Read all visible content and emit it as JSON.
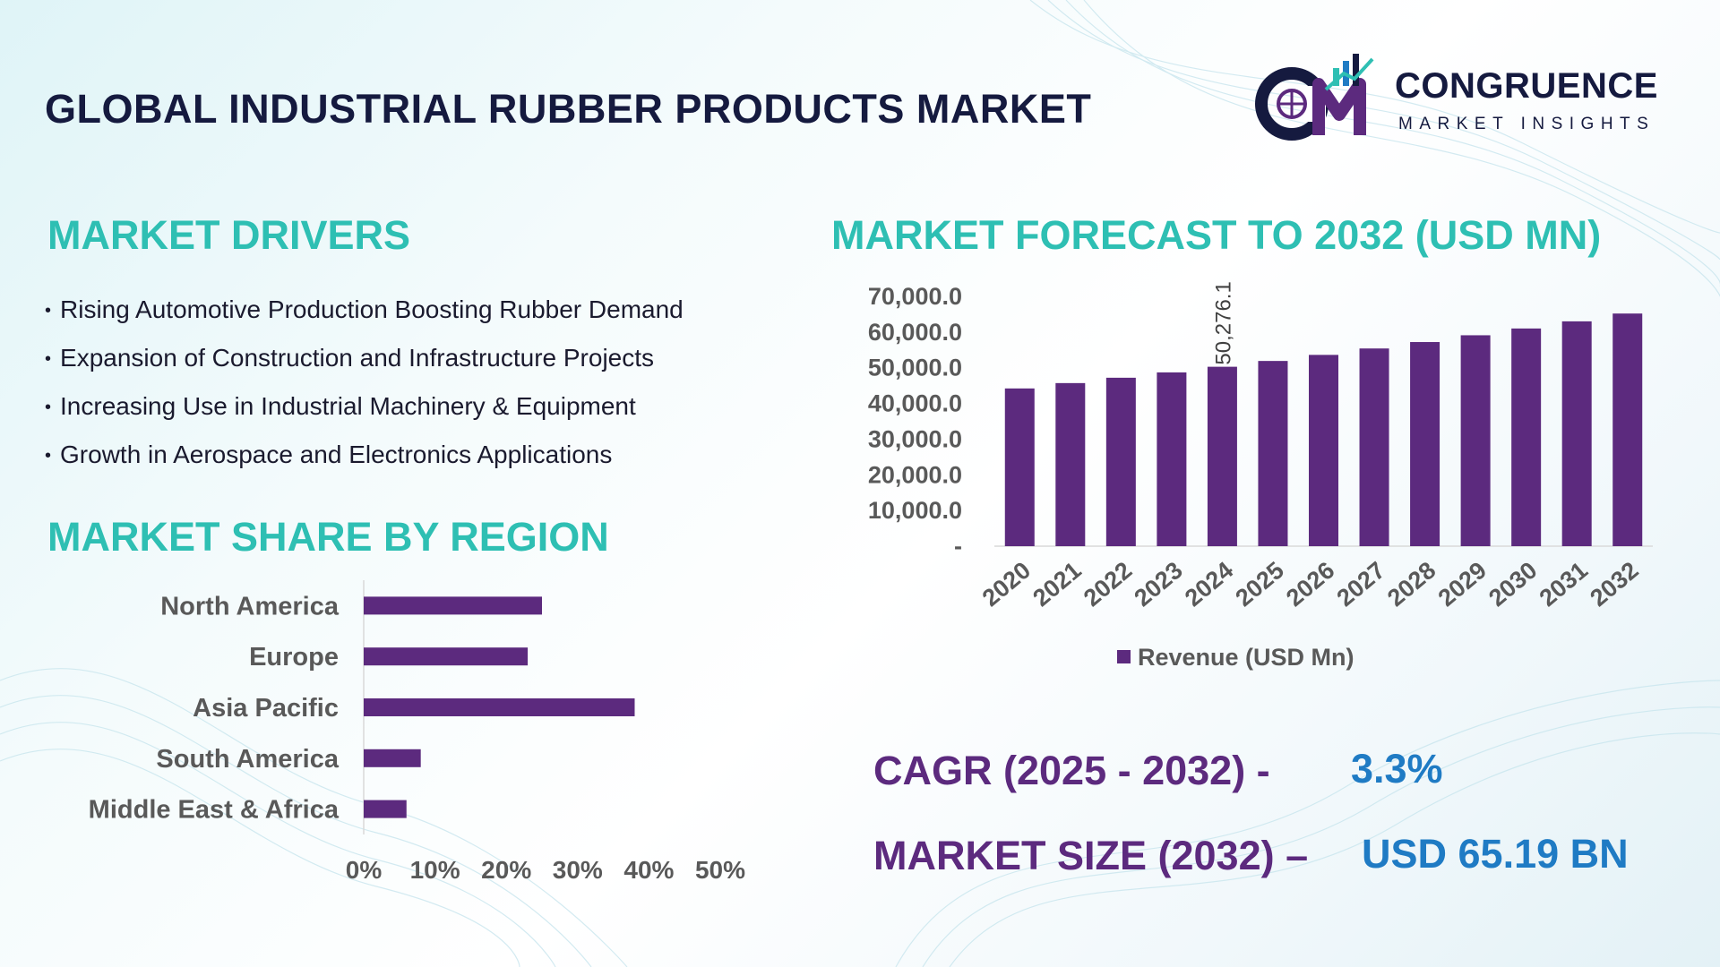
{
  "title": "GLOBAL INDUSTRIAL RUBBER PRODUCTS MARKET",
  "logo": {
    "name": "CONGRUENCE",
    "subtitle": "MARKET INSIGHTS",
    "mark": "CM"
  },
  "drivers": {
    "title": "MARKET DRIVERS",
    "bullet": "•",
    "items": [
      "Rising Automotive Production Boosting Rubber Demand",
      "Expansion of Construction and Infrastructure Projects",
      "Increasing Use in Industrial Machinery & Equipment",
      "Growth in Aerospace and Electronics Applications"
    ]
  },
  "forecast_title": "MARKET FORECAST TO 2032 (USD MN)",
  "region_title": "MARKET SHARE BY REGION",
  "stats": {
    "cagr_label": "CAGR (2025 - 2032) -",
    "cagr_value": "3.3%",
    "size_label": "MARKET SIZE (2032) –",
    "size_value": "USD 65.19 BN"
  },
  "colors": {
    "bar": "#5c2a7e",
    "accent": "#2ebfb3",
    "value": "#1f7bc4",
    "title": "#151a3f"
  },
  "chart_data": [
    {
      "type": "bar",
      "categories": [
        "2020",
        "2021",
        "2022",
        "2023",
        "2024",
        "2025",
        "2026",
        "2027",
        "2028",
        "2029",
        "2030",
        "2031",
        "2032"
      ],
      "series": [
        {
          "name": "Revenue (USD Mn)",
          "values": [
            44200,
            45700,
            47200,
            48700,
            50276.1,
            51900,
            53600,
            55400,
            57200,
            59100,
            61000,
            63000,
            65190
          ]
        }
      ],
      "ylim": [
        0,
        70000
      ],
      "yticks": [
        "-",
        "10,000.0",
        "20,000.0",
        "30,000.0",
        "40,000.0",
        "50,000.0",
        "60,000.0",
        "70,000.0"
      ],
      "data_labels": [
        {
          "category": "2024",
          "text": "50,276.1"
        }
      ],
      "legend": "bottom",
      "grid": false
    },
    {
      "type": "bar",
      "orientation": "horizontal",
      "categories": [
        "North America",
        "Europe",
        "Asia Pacific",
        "South America",
        "Middle East & Africa"
      ],
      "values": [
        25,
        23,
        38,
        8,
        6
      ],
      "xlim": [
        0,
        50
      ],
      "xticks": [
        "0%",
        "10%",
        "20%",
        "30%",
        "40%",
        "50%"
      ],
      "grid": false
    }
  ]
}
